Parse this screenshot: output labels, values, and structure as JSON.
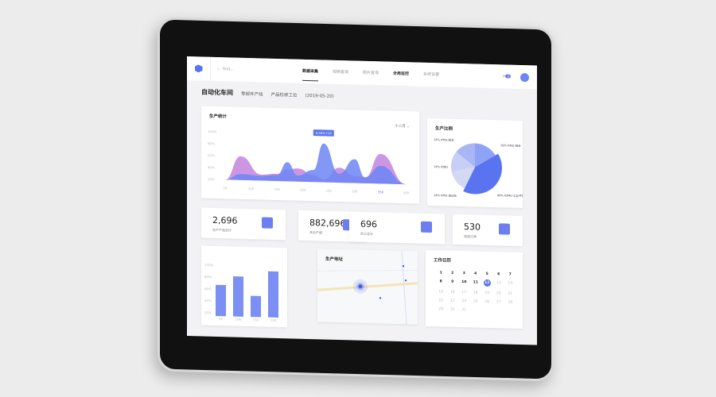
{
  "header": {
    "search_placeholder": "find...",
    "nav": [
      "数据采集",
      "视频查询",
      "照片查询",
      "全局监控",
      "系统设置"
    ],
    "active_nav": "数据采集",
    "notification_count": "0"
  },
  "breadcrumb": {
    "title": "自动化车间",
    "items": [
      "零部件产线",
      "产品检修工位",
      "(2019-05-20)"
    ]
  },
  "production_stats": {
    "title": "生产统计",
    "period_select": "十二月",
    "tooltip": "6,583,216"
  },
  "ratio": {
    "title": "生产比例"
  },
  "stats": [
    {
      "value": "2,696",
      "label": "生产产品总计",
      "icon": "wallet-icon"
    },
    {
      "value": "882,696",
      "label": "本月产值",
      "icon": "monitor-chart-icon"
    },
    {
      "value": "696",
      "label": "员工总计",
      "icon": "user-icon"
    },
    {
      "value": "530",
      "label": "完成订单",
      "icon": "calendar-list-icon"
    }
  ],
  "map": {
    "title": "生产地址"
  },
  "calendar": {
    "title": "工作日历",
    "days": [
      "1",
      "2",
      "3",
      "4",
      "5",
      "6",
      "7",
      "8",
      "9",
      "10",
      "11",
      "12",
      "13",
      "14",
      "15",
      "16",
      "17",
      "18",
      "19",
      "20",
      "21",
      "22",
      "23",
      "24",
      "25",
      "26",
      "27",
      "28",
      "29",
      "30",
      "31"
    ],
    "today": "12",
    "bold_through": 12
  },
  "colors": {
    "accent": "#5a74f0",
    "purple": "#c78be0",
    "blue": "#6d86f5"
  },
  "chart_data": [
    {
      "type": "area",
      "title": "生产统计",
      "x": [
        5,
        8,
        12,
        15,
        17,
        19,
        22,
        24,
        27,
        30,
        32,
        35,
        40
      ],
      "x_ticks": [
        "5K",
        "10K",
        "15K",
        "20K",
        "25K",
        "30K",
        "35K",
        "40K"
      ],
      "y_ticks": [
        "20%",
        "40%",
        "60%",
        "80%",
        "100%"
      ],
      "ylim": [
        20,
        100
      ],
      "xlim": [
        5,
        40
      ],
      "series": [
        {
          "values": [
            20,
            60,
            30,
            32,
            40,
            42,
            32,
            25,
            45,
            32,
            30,
            70,
            20
          ],
          "color": "#c78be0"
        },
        {
          "values": [
            20,
            30,
            28,
            30,
            52,
            30,
            40,
            85,
            35,
            60,
            30,
            50,
            20
          ],
          "color": "#6d86f5"
        }
      ]
    },
    {
      "type": "pie",
      "title": "生产比例",
      "slices": [
        {
          "label": "16% KMU-组合",
          "value": 16
        },
        {
          "label": "14% KMU-组合",
          "value": 14
        },
        {
          "label": "14% IDBU",
          "value": 14
        },
        {
          "label": "14% KMU-自动化",
          "value": 14
        },
        {
          "label": "40% IDMU-工业平板",
          "value": 40
        }
      ]
    },
    {
      "type": "bar",
      "categories": [
        "5K",
        "10K",
        "15K",
        "20K"
      ],
      "values": [
        67,
        82,
        50,
        92
      ],
      "y_ticks": [
        "20%",
        "40%",
        "60%",
        "80%",
        "100%"
      ],
      "ylim": [
        20,
        100
      ]
    }
  ]
}
